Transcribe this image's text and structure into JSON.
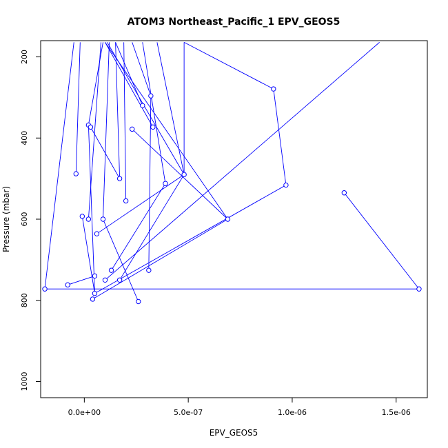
{
  "chart_data": {
    "type": "line",
    "title": "ATOM3 Northeast_Pacific_1 EPV_GEOS5",
    "xlabel": "EPV_GEOS5",
    "ylabel": "Pressure (mbar)",
    "xlim": [
      -2.1e-07,
      1.65e-06
    ],
    "ylim": [
      1040,
      160
    ],
    "y_reversed": true,
    "x_ticks": [
      {
        "value": 0,
        "label": "0.0e+00"
      },
      {
        "value": 5e-07,
        "label": "5.0e-07"
      },
      {
        "value": 1e-06,
        "label": "1.0e-06"
      },
      {
        "value": 1.5e-06,
        "label": "1.5e-06"
      }
    ],
    "y_ticks": [
      {
        "value": 200,
        "label": "200"
      },
      {
        "value": 400,
        "label": "400"
      },
      {
        "value": 600,
        "label": "600"
      },
      {
        "value": 800,
        "label": "800"
      },
      {
        "value": 1000,
        "label": "1000"
      }
    ],
    "color": "#0000ff",
    "series": [
      {
        "segments": [
          [
            [
              -1.9e-07,
              772
            ],
            [
              1.61e-06,
              772
            ],
            [
              1.25e-06,
              535
            ]
          ],
          [
            [
              -8e-08,
              762
            ],
            [
              5e-08,
              740
            ]
          ],
          [
            [
              4e-08,
              797
            ],
            [
              6.9e-07,
              600
            ],
            [
              1e-07,
              164
            ]
          ],
          [
            [
              5e-08,
              783
            ],
            [
              9.7e-07,
              516
            ]
          ],
          [
            [
              1.7e-07,
              750
            ],
            [
              4.8e-07,
              490
            ],
            [
              3.5e-07,
              164
            ]
          ],
          [
            [
              1.3e-07,
              726
            ],
            [
              3.9e-07,
              512
            ],
            [
              2.8e-07,
              164
            ]
          ],
          [
            [
              6e-08,
              636
            ],
            [
              4.8e-07,
              490
            ]
          ],
          [
            [
              1e-07,
              750
            ],
            [
              1.42e-06,
              164
            ]
          ],
          [
            [
              2.6e-07,
              803
            ],
            [
              9e-08,
              600
            ],
            [
              1.2e-07,
              164
            ]
          ],
          [
            [
              3.1e-07,
              726
            ],
            [
              3.2e-07,
              296
            ],
            [
              2.3e-07,
              164
            ]
          ],
          [
            [
              2.8e-07,
              320
            ],
            [
              1.5e-07,
              164
            ]
          ],
          [
            [
              2e-08,
              600
            ],
            [
              8e-08,
              164
            ]
          ],
          [
            [
              -1e-08,
              593
            ],
            [
              5e-08,
              783
            ],
            [
              2e-08,
              368
            ],
            [
              9e-08,
              164
            ]
          ],
          [
            [
              -4e-08,
              488
            ],
            [
              -2e-08,
              164
            ]
          ],
          [
            [
              3e-08,
              373
            ],
            [
              1.7e-07,
              500
            ],
            [
              1.5e-07,
              164
            ]
          ],
          [
            [
              2.3e-07,
              378
            ],
            [
              6.9e-07,
              600
            ]
          ],
          [
            [
              2e-07,
              555
            ],
            [
              1.9e-07,
              164
            ]
          ],
          [
            [
              3.3e-07,
              373
            ],
            [
              1e-07,
              164
            ]
          ],
          [
            [
              4.8e-07,
              164
            ],
            [
              9.1e-07,
              279
            ],
            [
              9.7e-07,
              516
            ]
          ],
          [
            [
              1.1e-07,
              164
            ],
            [
              4.8e-07,
              490
            ],
            [
              4.8e-07,
              164
            ]
          ],
          [
            [
              -1.9e-07,
              772
            ],
            [
              -5e-08,
              164
            ]
          ]
        ],
        "points": [
          [
            -1.9e-07,
            772
          ],
          [
            1.61e-06,
            772
          ],
          [
            1.25e-06,
            535
          ],
          [
            -8e-08,
            762
          ],
          [
            5e-08,
            740
          ],
          [
            4e-08,
            797
          ],
          [
            6.9e-07,
            600
          ],
          [
            5e-08,
            783
          ],
          [
            9.7e-07,
            516
          ],
          [
            1.7e-07,
            750
          ],
          [
            4.8e-07,
            490
          ],
          [
            1.3e-07,
            726
          ],
          [
            3.9e-07,
            512
          ],
          [
            6e-08,
            636
          ],
          [
            1e-07,
            750
          ],
          [
            2.6e-07,
            803
          ],
          [
            9e-08,
            600
          ],
          [
            3.1e-07,
            726
          ],
          [
            3.2e-07,
            296
          ],
          [
            2.8e-07,
            320
          ],
          [
            2e-08,
            600
          ],
          [
            -1e-08,
            593
          ],
          [
            2e-08,
            368
          ],
          [
            -4e-08,
            488
          ],
          [
            3e-08,
            373
          ],
          [
            1.7e-07,
            500
          ],
          [
            2.3e-07,
            378
          ],
          [
            2e-07,
            555
          ],
          [
            3.3e-07,
            373
          ],
          [
            9.1e-07,
            279
          ]
        ]
      }
    ]
  }
}
